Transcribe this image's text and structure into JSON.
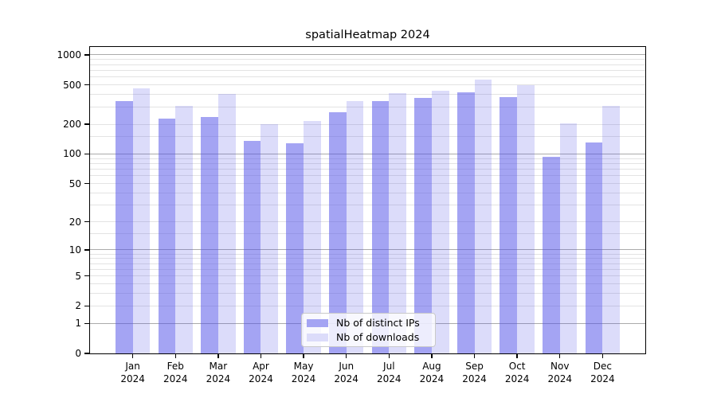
{
  "title": "spatialHeatmap 2024",
  "chart_data": {
    "type": "bar",
    "title": "spatialHeatmap 2024",
    "categories": [
      [
        "Jan",
        "2024"
      ],
      [
        "Feb",
        "2024"
      ],
      [
        "Mar",
        "2024"
      ],
      [
        "Apr",
        "2024"
      ],
      [
        "May",
        "2024"
      ],
      [
        "Jun",
        "2024"
      ],
      [
        "Jul",
        "2024"
      ],
      [
        "Aug",
        "2024"
      ],
      [
        "Sep",
        "2024"
      ],
      [
        "Oct",
        "2024"
      ],
      [
        "Nov",
        "2024"
      ],
      [
        "Dec",
        "2024"
      ]
    ],
    "series": [
      {
        "name": "Nb of distinct IPs",
        "color": "#a4a4f3",
        "fill": "rgba(80,80,232,0.52)",
        "values": [
          341,
          227,
          235,
          137,
          129,
          264,
          341,
          367,
          420,
          378,
          93,
          132
        ]
      },
      {
        "name": "Nb of downloads",
        "color": "#dcdcfa",
        "fill": "rgba(80,80,232,0.2)",
        "values": [
          460,
          305,
          402,
          200,
          217,
          345,
          415,
          433,
          564,
          493,
          204,
          309
        ]
      }
    ],
    "yscale": "log10(value+1)",
    "ylim": [
      0,
      1200
    ],
    "y_ticks": [
      0,
      1,
      2,
      5,
      10,
      20,
      50,
      100,
      200,
      500,
      1000
    ],
    "gridlines": {
      "major_values": [
        1,
        10,
        100,
        1000
      ],
      "minor_values": [
        2,
        3,
        4,
        5,
        6,
        7,
        8,
        9,
        15,
        20,
        30,
        40,
        50,
        60,
        70,
        80,
        90,
        150,
        200,
        300,
        400,
        500,
        600,
        700,
        800,
        900
      ],
      "major_color": "#ababab",
      "minor_color": "#e3e3e3"
    },
    "axis_color": "#000000",
    "grid": true,
    "legend_position": "bottom-center"
  },
  "legend": {
    "items": [
      {
        "label": "Nb of distinct IPs",
        "color": "#a4a4f3"
      },
      {
        "label": "Nb of downloads",
        "color": "#dcdcfa"
      }
    ]
  }
}
